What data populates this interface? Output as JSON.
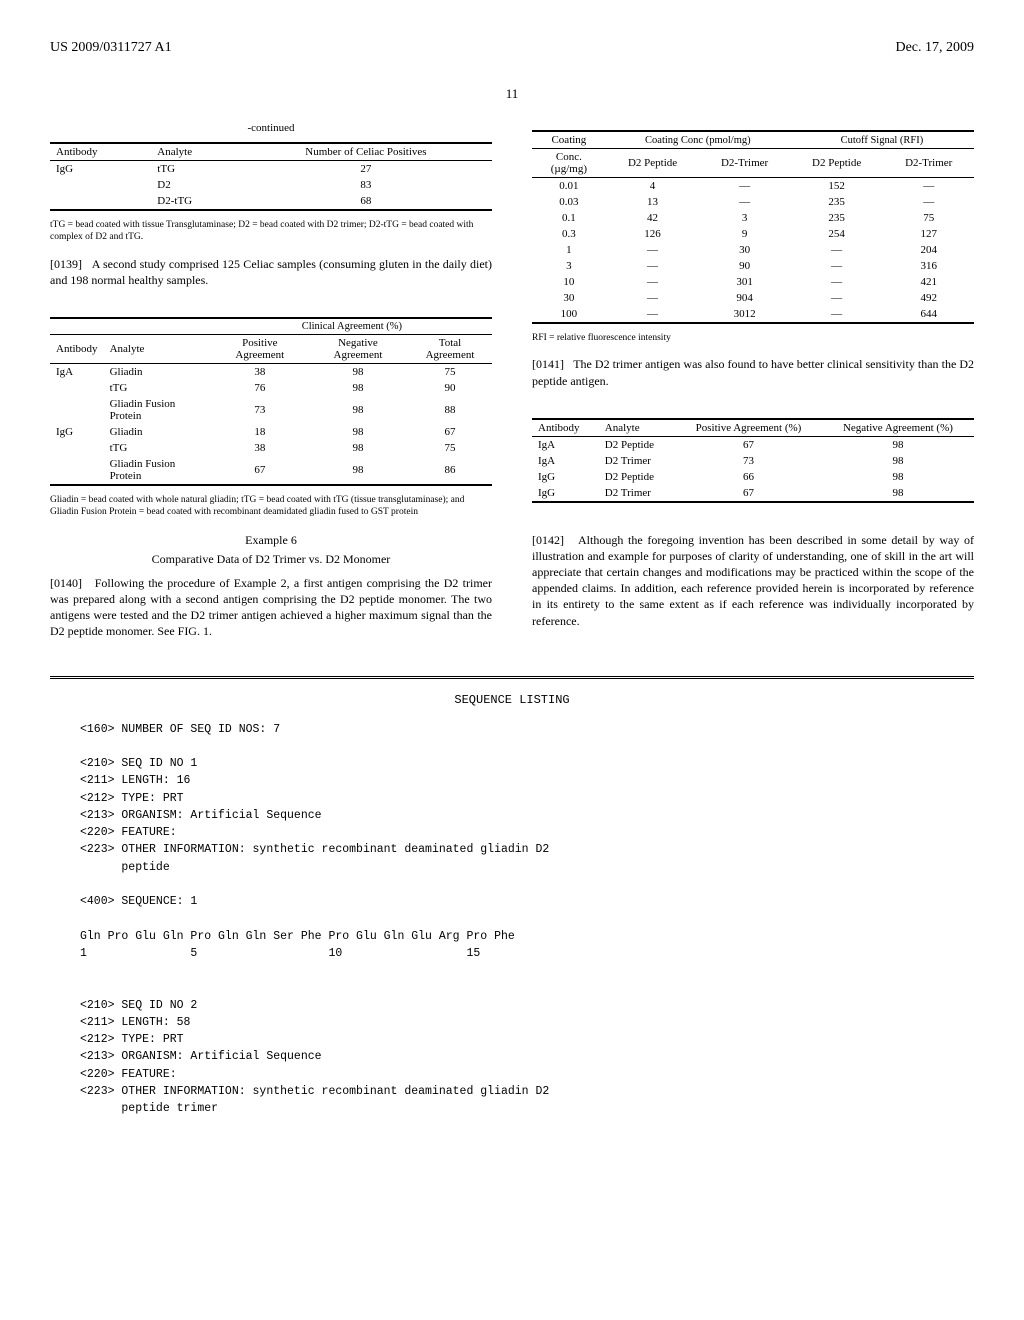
{
  "header": {
    "left": "US 2009/0311727 A1",
    "right": "Dec. 17, 2009"
  },
  "page_number": "11",
  "table1": {
    "continued_label": "-continued",
    "columns": [
      "Antibody",
      "Analyte",
      "Number of Celiac Positives"
    ],
    "rows": [
      [
        "IgG",
        "tTG",
        "27"
      ],
      [
        "",
        "D2",
        "83"
      ],
      [
        "",
        "D2-tTG",
        "68"
      ]
    ],
    "footnote": "tTG = bead coated with tissue Transglutaminase; D2 = bead coated with D2 trimer; D2-tTG = bead coated with complex of D2 and tTG."
  },
  "para_0139": {
    "num": "[0139]",
    "text": "A second study comprised 125 Celiac samples (consuming gluten in the daily diet) and 198 normal healthy samples."
  },
  "table2": {
    "group_header": "Clinical Agreement (%)",
    "columns": [
      "Antibody",
      "Analyte",
      "Positive Agreement",
      "Negative Agreement",
      "Total Agreement"
    ],
    "rows": [
      [
        "IgA",
        "Gliadin",
        "38",
        "98",
        "75"
      ],
      [
        "",
        "tTG",
        "76",
        "98",
        "90"
      ],
      [
        "",
        "Gliadin Fusion Protein",
        "73",
        "98",
        "88"
      ],
      [
        "IgG",
        "Gliadin",
        "18",
        "98",
        "67"
      ],
      [
        "",
        "tTG",
        "38",
        "98",
        "75"
      ],
      [
        "",
        "Gliadin Fusion Protein",
        "67",
        "98",
        "86"
      ]
    ],
    "footnote": "Gliadin = bead coated with whole natural gliadin; tTG = bead coated with tTG (tissue transglutaminase); and Gliadin Fusion Protein = bead coated with recombinant deamidated gliadin fused to GST protein"
  },
  "example6": {
    "title": "Example 6",
    "subtitle": "Comparative Data of D2 Trimer vs. D2 Monomer"
  },
  "para_0140": {
    "num": "[0140]",
    "text": "Following the procedure of Example 2, a first antigen comprising the D2 trimer was prepared along with a second antigen comprising the D2 peptide monomer. The two antigens were tested and the D2 trimer antigen achieved a higher maximum signal than the D2 peptide monomer. See FIG. 1."
  },
  "table3": {
    "group1": "Coating Conc (pmol/mg)",
    "group2": "Cutoff Signal (RFI)",
    "col0": "Coating Conc. (µg/mg)",
    "subcols": [
      "D2 Peptide",
      "D2-Trimer",
      "D2 Peptide",
      "D2-Trimer"
    ],
    "rows": [
      [
        "0.01",
        "4",
        "—",
        "152",
        "—"
      ],
      [
        "0.03",
        "13",
        "—",
        "235",
        "—"
      ],
      [
        "0.1",
        "42",
        "3",
        "235",
        "75"
      ],
      [
        "0.3",
        "126",
        "9",
        "254",
        "127"
      ],
      [
        "1",
        "—",
        "30",
        "—",
        "204"
      ],
      [
        "3",
        "—",
        "90",
        "—",
        "316"
      ],
      [
        "10",
        "—",
        "301",
        "—",
        "421"
      ],
      [
        "30",
        "—",
        "904",
        "—",
        "492"
      ],
      [
        "100",
        "—",
        "3012",
        "—",
        "644"
      ]
    ],
    "footnote": "RFI = relative fluorescence intensity"
  },
  "para_0141": {
    "num": "[0141]",
    "text": "The D2 trimer antigen was also found to have better clinical sensitivity than the D2 peptide antigen."
  },
  "table4": {
    "columns": [
      "Antibody",
      "Analyte",
      "Positive Agreement (%)",
      "Negative Agreement (%)"
    ],
    "rows": [
      [
        "IgA",
        "D2 Peptide",
        "67",
        "98"
      ],
      [
        "IgA",
        "D2 Trimer",
        "73",
        "98"
      ],
      [
        "IgG",
        "D2 Peptide",
        "66",
        "98"
      ],
      [
        "IgG",
        "D2 Trimer",
        "67",
        "98"
      ]
    ]
  },
  "para_0142": {
    "num": "[0142]",
    "text": "Although the foregoing invention has been described in some detail by way of illustration and example for purposes of clarity of understanding, one of skill in the art will appreciate that certain changes and modifications may be practiced within the scope of the appended claims. In addition, each reference provided herein is incorporated by reference in its entirety to the same extent as if each reference was individually incorporated by reference."
  },
  "sequence_listing": {
    "title": "SEQUENCE LISTING",
    "body": "<160> NUMBER OF SEQ ID NOS: 7\n\n<210> SEQ ID NO 1\n<211> LENGTH: 16\n<212> TYPE: PRT\n<213> ORGANISM: Artificial Sequence\n<220> FEATURE:\n<223> OTHER INFORMATION: synthetic recombinant deaminated gliadin D2\n      peptide\n\n<400> SEQUENCE: 1\n\nGln Pro Glu Gln Pro Gln Gln Ser Phe Pro Glu Gln Glu Arg Pro Phe\n1               5                   10                  15\n\n\n<210> SEQ ID NO 2\n<211> LENGTH: 58\n<212> TYPE: PRT\n<213> ORGANISM: Artificial Sequence\n<220> FEATURE:\n<223> OTHER INFORMATION: synthetic recombinant deaminated gliadin D2\n      peptide trimer"
  }
}
